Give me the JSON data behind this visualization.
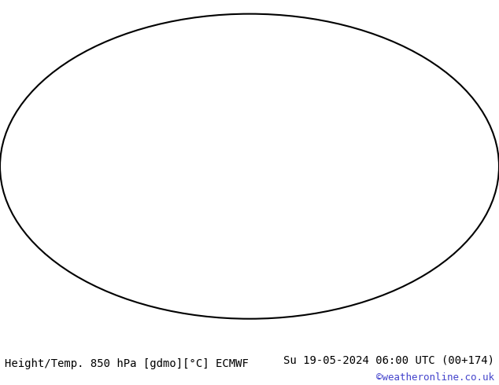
{
  "title_left": "Height/Temp. 850 hPa [gdmo][°C] ECMWF",
  "title_right": "Su 19-05-2024 06:00 UTC (00+174)",
  "credit": "©weatheronline.co.uk",
  "bg_color": "#ffffff",
  "map_bg": "#f0f0f0",
  "font_family": "monospace",
  "title_fontsize": 10,
  "credit_fontsize": 9,
  "credit_color": "#4444cc"
}
